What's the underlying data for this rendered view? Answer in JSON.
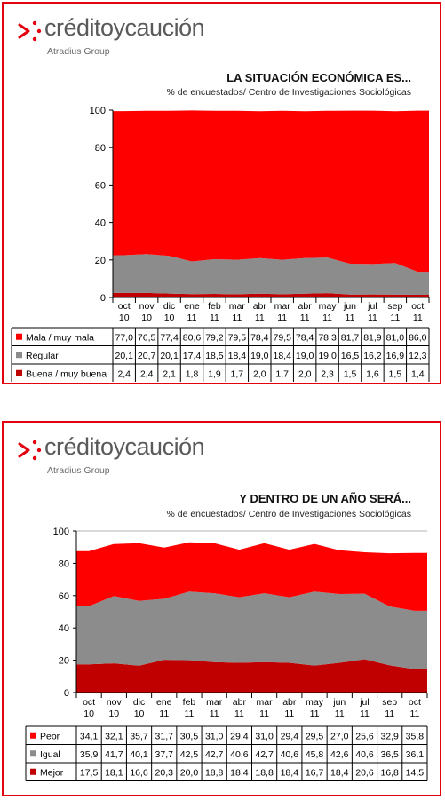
{
  "brand": {
    "name": "créditoycaución",
    "group": "Atradius Group",
    "accent_color": "#e3000f",
    "text_color": "#5a5a5a"
  },
  "chart_data": [
    {
      "type": "area",
      "stacked": true,
      "title": "LA SITUACIÓN ECONÓMICA ES...",
      "subtitle": "% de encuestados/ Centro de Investigaciones Sociológicas",
      "categories": [
        [
          "oct",
          "10"
        ],
        [
          "nov",
          "10"
        ],
        [
          "dic",
          "10"
        ],
        [
          "ene",
          "11"
        ],
        [
          "feb",
          "11"
        ],
        [
          "mar",
          "11"
        ],
        [
          "abr",
          "11"
        ],
        [
          "mar",
          "11"
        ],
        [
          "abr",
          "11"
        ],
        [
          "may",
          "11"
        ],
        [
          "jun",
          "11"
        ],
        [
          "jul",
          "11"
        ],
        [
          "sep",
          "11"
        ],
        [
          "oct",
          "11"
        ]
      ],
      "ylim": [
        0,
        100
      ],
      "yticks": [
        0,
        20,
        40,
        60,
        80,
        100
      ],
      "grid": false,
      "legend": "table",
      "series": [
        {
          "name": "Mala / muy mala",
          "color": "#ff0000",
          "values": [
            "77,0",
            "76,5",
            "77,4",
            "80,6",
            "79,2",
            "79,5",
            "78,4",
            "79,5",
            "78,4",
            "78,3",
            "81,7",
            "81,9",
            "81,0",
            "86,0"
          ]
        },
        {
          "name": "Regular",
          "color": "#8c8c8c",
          "values": [
            "20,1",
            "20,7",
            "20,1",
            "17,4",
            "18,5",
            "18,4",
            "19,0",
            "18,4",
            "19,0",
            "19,0",
            "16,5",
            "16,2",
            "16,9",
            "12,3"
          ]
        },
        {
          "name": "Buena / muy buena",
          "color": "#c00000",
          "values": [
            "2,4",
            "2,4",
            "2,1",
            "1,8",
            "1,9",
            "1,7",
            "2,0",
            "1,7",
            "2,0",
            "2,3",
            "1,5",
            "1,6",
            "1,5",
            "1,4"
          ]
        }
      ]
    },
    {
      "type": "area",
      "stacked": true,
      "title": "Y DENTRO DE UN AÑO SERÁ...",
      "subtitle": "% de encuestados/ Centro de Investigaciones Sociológicas",
      "categories": [
        [
          "oct",
          "10"
        ],
        [
          "nov",
          "10"
        ],
        [
          "dic",
          "10"
        ],
        [
          "ene",
          "11"
        ],
        [
          "feb",
          "11"
        ],
        [
          "mar",
          "11"
        ],
        [
          "abr",
          "11"
        ],
        [
          "mar",
          "11"
        ],
        [
          "abr",
          "11"
        ],
        [
          "may",
          "11"
        ],
        [
          "jun",
          "11"
        ],
        [
          "jul",
          "11"
        ],
        [
          "sep",
          "11"
        ],
        [
          "oct",
          "11"
        ]
      ],
      "ylim": [
        0,
        100
      ],
      "yticks": [
        0,
        20,
        40,
        60,
        80,
        100
      ],
      "grid": true,
      "legend": "table",
      "series": [
        {
          "name": "Peor",
          "color": "#ff0000",
          "values": [
            "34,1",
            "32,1",
            "35,7",
            "31,7",
            "30,5",
            "31,0",
            "29,4",
            "31,0",
            "29,4",
            "29,5",
            "27,0",
            "25,6",
            "32,9",
            "35,8"
          ]
        },
        {
          "name": "Igual",
          "color": "#8c8c8c",
          "values": [
            "35,9",
            "41,7",
            "40,1",
            "37,7",
            "42,5",
            "42,7",
            "40,6",
            "42,7",
            "40,6",
            "45,8",
            "42,6",
            "40,6",
            "36,5",
            "36,1"
          ]
        },
        {
          "name": "Mejor",
          "color": "#c00000",
          "values": [
            "17,5",
            "18,1",
            "16,6",
            "20,3",
            "20,0",
            "18,8",
            "18,4",
            "18,8",
            "18,4",
            "16,7",
            "18,4",
            "20,6",
            "16,8",
            "14,5"
          ]
        }
      ]
    }
  ]
}
